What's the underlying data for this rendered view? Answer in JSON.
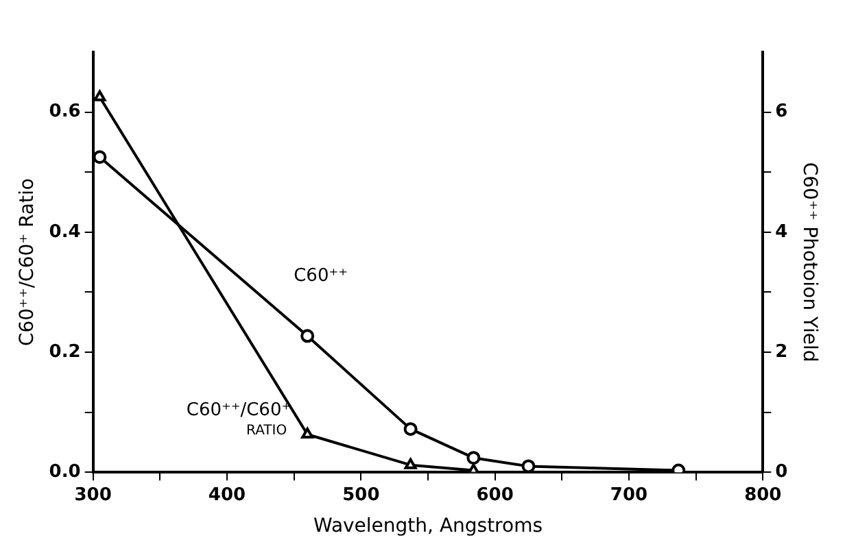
{
  "chart_data": {
    "type": "line",
    "xlabel": "Wavelength, Angstroms",
    "ylabel": "C60⁺⁺/C60⁺ Ratio",
    "y2label": "C60⁺⁺ Photoion Yield",
    "x": [
      305,
      460,
      537,
      584,
      625,
      737
    ],
    "series": [
      {
        "name": "C60⁺⁺",
        "color": "#000000",
        "axis": "y2",
        "marker": "circle",
        "values": [
          5.25,
          2.27,
          0.72,
          0.24,
          0.1,
          0.03
        ]
      },
      {
        "name": "C60⁺⁺/C60⁺ RATIO",
        "color": "#000000",
        "axis": "y",
        "marker": "triangle",
        "values": [
          0.625,
          0.063,
          0.012,
          0.003,
          null,
          0
        ]
      }
    ],
    "xlim": [
      300,
      800
    ],
    "xticks": [
      300,
      {
        "value": 350,
        "label": null
      },
      400,
      {
        "value": 450,
        "label": null
      },
      500,
      {
        "value": 550,
        "label": null
      },
      600,
      {
        "value": 650,
        "label": null
      },
      700,
      {
        "value": 750,
        "label": null
      },
      800
    ],
    "ylim": [
      0,
      0.7
    ],
    "yticks": [
      {
        "value": 0,
        "label": "0.0"
      },
      {
        "value": 0.1,
        "label": null
      },
      0.2,
      {
        "value": 0.3,
        "label": null
      },
      0.4,
      {
        "value": 0.5,
        "label": null
      },
      0.6
    ],
    "y2lim": [
      0,
      7
    ],
    "y2ticks": [
      0,
      {
        "value": 1,
        "label": null
      },
      2,
      {
        "value": 3,
        "label": null
      },
      4,
      {
        "value": 5,
        "label": null
      },
      6
    ],
    "grid": false,
    "legend": false,
    "line_style": "solid"
  }
}
